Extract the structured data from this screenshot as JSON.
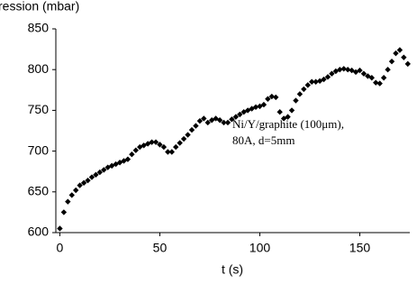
{
  "chart_data": {
    "type": "scatter",
    "y_label": "ression (mbar)",
    "x_label": "t (s)",
    "annotation": [
      "Ni/Y/graphite (100μm),",
      "80A, d=5mm"
    ],
    "color": "#000000",
    "grid": false,
    "xlim": [
      -2,
      175
    ],
    "xticks": [
      0,
      50,
      100,
      150
    ],
    "ylim": [
      600,
      850
    ],
    "yticks": [
      600,
      650,
      700,
      750,
      800,
      850
    ],
    "x": [
      0,
      2,
      4,
      6,
      8,
      10,
      12,
      14,
      16,
      18,
      20,
      22,
      24,
      26,
      28,
      30,
      32,
      34,
      36,
      38,
      40,
      42,
      44,
      46,
      48,
      50,
      52,
      54,
      56,
      58,
      60,
      62,
      64,
      66,
      68,
      70,
      72,
      74,
      76,
      78,
      80,
      82,
      84,
      86,
      88,
      90,
      92,
      94,
      96,
      98,
      100,
      102,
      104,
      106,
      108,
      110,
      112,
      114,
      116,
      118,
      120,
      122,
      124,
      126,
      128,
      130,
      132,
      134,
      136,
      138,
      140,
      142,
      144,
      146,
      148,
      150,
      152,
      154,
      156,
      158,
      160,
      162,
      164,
      166,
      168,
      170,
      172,
      174
    ],
    "values": [
      605,
      625,
      638,
      646,
      652,
      658,
      661,
      664,
      668,
      671,
      674,
      677,
      680,
      682,
      684,
      686,
      688,
      690,
      696,
      701,
      705,
      707,
      709,
      711,
      711,
      708,
      705,
      699,
      699,
      705,
      710,
      715,
      720,
      726,
      731,
      737,
      740,
      735,
      738,
      740,
      738,
      735,
      735,
      739,
      742,
      745,
      748,
      750,
      752,
      754,
      755,
      757,
      764,
      767,
      766,
      748,
      740,
      742,
      750,
      762,
      770,
      776,
      781,
      785,
      785,
      786,
      788,
      791,
      795,
      798,
      800,
      801,
      800,
      799,
      797,
      799,
      795,
      792,
      790,
      784,
      783,
      790,
      800,
      810,
      820,
      824,
      815,
      807
    ]
  }
}
